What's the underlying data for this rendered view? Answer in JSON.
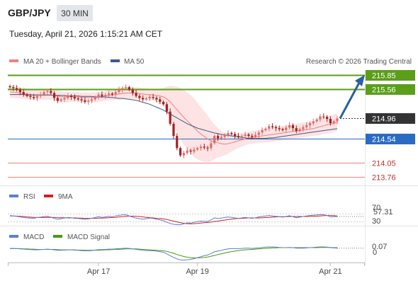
{
  "header": {
    "symbol": "GBP/JPY",
    "timeframe": "30 MIN",
    "datetime": "Tuesday, April 21, 2026 1:15:21 AM CET"
  },
  "legend": {
    "ma20_label": "MA 20 + Bollinger Bands",
    "ma50_label": "MA 50",
    "research": "Research © 2026 Trading Central"
  },
  "colors": {
    "resistance": "#5a9e1a",
    "pivot": "#2a6bc4",
    "support": "#f08080",
    "arrow": "#2a5fa0",
    "candle_up": "#e06a6a",
    "candle_down": "#a61f1f",
    "bollinger_fill": "#fde0e0",
    "ma50": "#3a5a8c",
    "rsi": "#5b7fd0",
    "rsi_ma": "#d02020",
    "macd": "#5b7fd0",
    "macd_signal": "#4a9a10"
  },
  "levels": [
    {
      "label": "215.85",
      "value": 215.85,
      "type": "resistance"
    },
    {
      "label": "215.56",
      "value": 215.56,
      "type": "resistance"
    },
    {
      "label": "214.96",
      "value": 214.96,
      "type": "current"
    },
    {
      "label": "214.54",
      "value": 214.54,
      "type": "pivot"
    },
    {
      "label": "214.05",
      "value": 214.05,
      "type": "support"
    },
    {
      "label": "213.76",
      "value": 213.76,
      "type": "support"
    }
  ],
  "rsi_panel": {
    "label": "RSI",
    "ma_label": "9MA",
    "value_label": "57.31",
    "upper_label": "70",
    "lower_label": "30",
    "ylim": [
      0,
      100
    ]
  },
  "macd_panel": {
    "label": "MACD",
    "signal_label": "MACD Signal",
    "value_label": "0.07",
    "zero_label": "0"
  },
  "chart_data": {
    "type": "candlestick",
    "title": "GBP/JPY 30 MIN",
    "ylim": [
      213.6,
      215.95
    ],
    "x_ticks": [
      "Apr 17",
      "Apr 19",
      "Apr 21"
    ],
    "x_tick_index": [
      26,
      55,
      94
    ],
    "projection_target": 215.85,
    "closes": [
      215.6,
      215.58,
      215.55,
      215.5,
      215.45,
      215.42,
      215.4,
      215.38,
      215.42,
      215.45,
      215.5,
      215.52,
      215.48,
      215.38,
      215.32,
      215.35,
      215.38,
      215.42,
      215.4,
      215.37,
      215.35,
      215.33,
      215.3,
      215.32,
      215.35,
      215.4,
      215.45,
      215.42,
      215.44,
      215.47,
      215.45,
      215.5,
      215.55,
      215.58,
      215.6,
      215.55,
      215.48,
      215.42,
      215.38,
      215.35,
      215.37,
      215.4,
      215.38,
      215.35,
      215.3,
      215.25,
      215.1,
      214.85,
      214.6,
      214.35,
      214.2,
      214.25,
      214.3,
      214.28,
      214.32,
      214.35,
      214.38,
      214.36,
      214.35,
      214.45,
      214.6,
      214.55,
      214.58,
      214.62,
      214.66,
      214.64,
      214.6,
      214.58,
      214.6,
      214.63,
      214.6,
      214.58,
      214.62,
      214.67,
      214.72,
      214.75,
      214.8,
      214.78,
      214.76,
      214.74,
      214.72,
      214.77,
      214.82,
      214.76,
      214.7,
      214.74,
      214.78,
      214.82,
      214.86,
      214.9,
      214.94,
      215.0,
      214.99,
      214.95,
      214.86,
      214.9,
      214.96
    ],
    "ma20": [
      215.5,
      215.5,
      215.49,
      215.48,
      215.47,
      215.46,
      215.45,
      215.44,
      215.44,
      215.44,
      215.44,
      215.44,
      215.44,
      215.43,
      215.42,
      215.41,
      215.4,
      215.4,
      215.4,
      215.4,
      215.4,
      215.39,
      215.39,
      215.39,
      215.39,
      215.39,
      215.4,
      215.41,
      215.42,
      215.43,
      215.44,
      215.45,
      215.46,
      215.47,
      215.48,
      215.48,
      215.48,
      215.48,
      215.47,
      215.46,
      215.45,
      215.45,
      215.44,
      215.43,
      215.42,
      215.4,
      215.36,
      215.3,
      215.22,
      215.14,
      215.06,
      214.98,
      214.91,
      214.84,
      214.77,
      214.7,
      214.64,
      214.59,
      214.54,
      214.5,
      214.48,
      214.46,
      214.44,
      214.43,
      214.44,
      214.46,
      214.48,
      214.5,
      214.52,
      214.54,
      214.56,
      214.57,
      214.58,
      214.59,
      214.6,
      214.61,
      214.62,
      214.63,
      214.64,
      214.65,
      214.66,
      214.67,
      214.68,
      214.69,
      214.7,
      214.71,
      214.72,
      214.73,
      214.74,
      214.75,
      214.77,
      214.79,
      214.81,
      214.83,
      214.84,
      214.86,
      214.88
    ],
    "ma50": [
      215.45,
      215.45,
      215.45,
      215.45,
      215.45,
      215.44,
      215.44,
      215.44,
      215.44,
      215.44,
      215.44,
      215.44,
      215.44,
      215.43,
      215.43,
      215.43,
      215.43,
      215.42,
      215.42,
      215.42,
      215.42,
      215.41,
      215.41,
      215.41,
      215.41,
      215.4,
      215.4,
      215.4,
      215.4,
      215.39,
      215.39,
      215.38,
      215.37,
      215.37,
      215.36,
      215.35,
      215.34,
      215.33,
      215.31,
      215.29,
      215.27,
      215.25,
      215.22,
      215.19,
      215.16,
      215.13,
      215.09,
      215.05,
      215.01,
      214.97,
      214.93,
      214.89,
      214.85,
      214.82,
      214.79,
      214.76,
      214.74,
      214.72,
      214.7,
      214.68,
      214.66,
      214.65,
      214.63,
      214.62,
      214.61,
      214.6,
      214.59,
      214.58,
      214.57,
      214.56,
      214.55,
      214.55,
      214.55,
      214.55,
      214.55,
      214.55,
      214.56,
      214.56,
      214.57,
      214.58,
      214.59,
      214.6,
      214.61,
      214.62,
      214.63,
      214.64,
      214.65,
      214.66,
      214.67,
      214.68,
      214.69,
      214.7,
      214.71,
      214.72,
      214.73,
      214.74,
      214.75
    ],
    "bb_width": [
      0.12,
      0.12,
      0.12,
      0.11,
      0.11,
      0.11,
      0.1,
      0.1,
      0.1,
      0.1,
      0.1,
      0.1,
      0.1,
      0.1,
      0.11,
      0.11,
      0.11,
      0.11,
      0.1,
      0.1,
      0.1,
      0.1,
      0.1,
      0.1,
      0.1,
      0.1,
      0.1,
      0.1,
      0.1,
      0.1,
      0.11,
      0.11,
      0.12,
      0.12,
      0.12,
      0.12,
      0.12,
      0.12,
      0.12,
      0.12,
      0.12,
      0.12,
      0.12,
      0.13,
      0.15,
      0.18,
      0.25,
      0.33,
      0.4,
      0.47,
      0.52,
      0.56,
      0.58,
      0.6,
      0.6,
      0.58,
      0.55,
      0.52,
      0.48,
      0.42,
      0.35,
      0.3,
      0.26,
      0.23,
      0.2,
      0.18,
      0.16,
      0.15,
      0.14,
      0.13,
      0.13,
      0.13,
      0.13,
      0.13,
      0.14,
      0.14,
      0.15,
      0.15,
      0.15,
      0.15,
      0.15,
      0.15,
      0.15,
      0.15,
      0.15,
      0.15,
      0.15,
      0.15,
      0.15,
      0.15,
      0.16,
      0.17,
      0.17,
      0.18,
      0.18,
      0.18,
      0.18
    ],
    "rsi": [
      62,
      60,
      58,
      55,
      52,
      50,
      49,
      48,
      52,
      54,
      57,
      58,
      54,
      47,
      43,
      46,
      49,
      52,
      51,
      48,
      47,
      45,
      43,
      45,
      48,
      52,
      56,
      53,
      55,
      58,
      56,
      60,
      63,
      65,
      66,
      60,
      54,
      49,
      46,
      44,
      46,
      49,
      47,
      44,
      40,
      36,
      28,
      22,
      18,
      16,
      15,
      20,
      25,
      24,
      28,
      31,
      34,
      33,
      32,
      40,
      50,
      47,
      49,
      52,
      55,
      53,
      50,
      48,
      50,
      53,
      50,
      48,
      51,
      55,
      58,
      60,
      62,
      60,
      58,
      56,
      54,
      57,
      61,
      56,
      51,
      54,
      57,
      60,
      62,
      64,
      65,
      67,
      66,
      62,
      55,
      57,
      57.31
    ],
    "rsi_ma": [
      60,
      60,
      59,
      58,
      57,
      55,
      54,
      53,
      52,
      52,
      52,
      53,
      53,
      52,
      51,
      51,
      51,
      50,
      50,
      50,
      49,
      49,
      48,
      48,
      48,
      48,
      49,
      49,
      50,
      51,
      52,
      53,
      55,
      56,
      58,
      59,
      59,
      58,
      57,
      55,
      53,
      51,
      50,
      48,
      47,
      45,
      42,
      38,
      34,
      30,
      26,
      23,
      21,
      20,
      21,
      22,
      24,
      26,
      27,
      29,
      32,
      34,
      37,
      39,
      42,
      44,
      46,
      47,
      48,
      49,
      50,
      50,
      50,
      50,
      51,
      52,
      53,
      54,
      55,
      56,
      56,
      56,
      57,
      57,
      57,
      57,
      57,
      57,
      58,
      58,
      59,
      60,
      61,
      62,
      62,
      61,
      60
    ],
    "macd": [
      0.06,
      0.06,
      0.05,
      0.04,
      0.03,
      0.02,
      0.01,
      0.0,
      0.0,
      0.01,
      0.02,
      0.03,
      0.02,
      0.0,
      -0.02,
      -0.02,
      -0.01,
      0.0,
      0.0,
      -0.01,
      -0.02,
      -0.03,
      -0.04,
      -0.04,
      -0.03,
      -0.01,
      0.01,
      0.01,
      0.02,
      0.03,
      0.03,
      0.04,
      0.05,
      0.06,
      0.07,
      0.06,
      0.04,
      0.02,
      0.0,
      -0.02,
      -0.03,
      -0.03,
      -0.04,
      -0.05,
      -0.07,
      -0.1,
      -0.16,
      -0.24,
      -0.31,
      -0.37,
      -0.41,
      -0.42,
      -0.41,
      -0.39,
      -0.36,
      -0.32,
      -0.28,
      -0.24,
      -0.21,
      -0.15,
      -0.08,
      -0.05,
      -0.02,
      0.01,
      0.04,
      0.05,
      0.05,
      0.05,
      0.06,
      0.07,
      0.07,
      0.06,
      0.07,
      0.08,
      0.1,
      0.11,
      0.12,
      0.12,
      0.11,
      0.1,
      0.09,
      0.09,
      0.1,
      0.09,
      0.07,
      0.07,
      0.07,
      0.08,
      0.09,
      0.1,
      0.11,
      0.12,
      0.12,
      0.11,
      0.09,
      0.08,
      0.07
    ],
    "macd_signal": [
      0.05,
      0.05,
      0.05,
      0.05,
      0.04,
      0.04,
      0.03,
      0.03,
      0.02,
      0.02,
      0.02,
      0.02,
      0.02,
      0.02,
      0.01,
      0.0,
      0.0,
      0.0,
      0.0,
      0.0,
      -0.01,
      -0.01,
      -0.02,
      -0.02,
      -0.02,
      -0.02,
      -0.02,
      -0.01,
      0.0,
      0.0,
      0.01,
      0.02,
      0.02,
      0.03,
      0.04,
      0.04,
      0.04,
      0.04,
      0.03,
      0.02,
      0.01,
      0.0,
      -0.01,
      -0.02,
      -0.03,
      -0.04,
      -0.06,
      -0.1,
      -0.14,
      -0.19,
      -0.23,
      -0.27,
      -0.3,
      -0.32,
      -0.33,
      -0.33,
      -0.32,
      -0.31,
      -0.29,
      -0.26,
      -0.23,
      -0.19,
      -0.16,
      -0.13,
      -0.1,
      -0.07,
      -0.05,
      -0.03,
      -0.01,
      0.0,
      0.01,
      0.02,
      0.03,
      0.04,
      0.05,
      0.06,
      0.07,
      0.08,
      0.08,
      0.09,
      0.09,
      0.09,
      0.09,
      0.09,
      0.09,
      0.09,
      0.09,
      0.09,
      0.09,
      0.09,
      0.09,
      0.1,
      0.1,
      0.1,
      0.1,
      0.09,
      0.09
    ]
  }
}
